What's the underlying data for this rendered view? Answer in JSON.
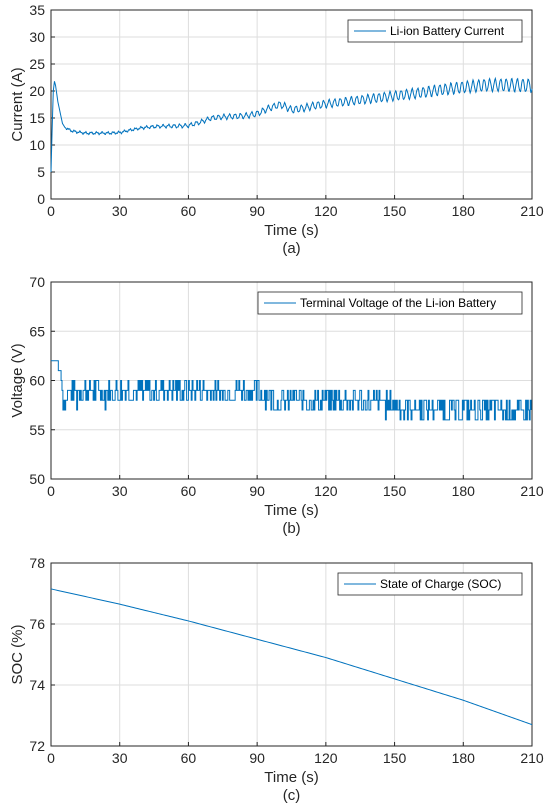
{
  "chart_data": [
    {
      "type": "line",
      "caption": "(a)",
      "xlabel": "Time (s)",
      "ylabel": "Current (A)",
      "xlim": [
        0,
        210
      ],
      "ylim": [
        0,
        35
      ],
      "xticks": [
        0,
        30,
        60,
        90,
        120,
        150,
        180,
        210
      ],
      "yticks": [
        0,
        5,
        10,
        15,
        20,
        25,
        30,
        35
      ],
      "grid": true,
      "legend_position": "top-right",
      "color": "#0072BD",
      "series": [
        {
          "name": "Li-ion Battery Current",
          "x": [
            0,
            0.5,
            1,
            1.5,
            2,
            3,
            4,
            5,
            6,
            8,
            10,
            15,
            20,
            25,
            30,
            35,
            40,
            45,
            50,
            55,
            60,
            65,
            70,
            75,
            80,
            85,
            90,
            95,
            100,
            102,
            105,
            110,
            115,
            120,
            130,
            140,
            150,
            160,
            170,
            180,
            190,
            200,
            210
          ],
          "y": [
            5,
            13,
            20,
            21.8,
            21,
            18,
            16,
            14,
            13.3,
            12.8,
            12.5,
            12.2,
            12.2,
            12.2,
            12.3,
            12.8,
            13.2,
            13.4,
            13.5,
            13.5,
            13.6,
            14.2,
            15,
            15.2,
            15.3,
            15.4,
            15.8,
            16.8,
            17.5,
            17.2,
            16.5,
            16.8,
            17.3,
            17.6,
            18.1,
            18.6,
            19.1,
            19.6,
            20.2,
            20.7,
            21.1,
            21.1,
            21
          ],
          "oscillation_amplitude": 1.2
        }
      ]
    },
    {
      "type": "line",
      "caption": "(b)",
      "xlabel": "Time (s)",
      "ylabel": "Voltage (V)",
      "xlim": [
        0,
        210
      ],
      "ylim": [
        50,
        70
      ],
      "xticks": [
        0,
        30,
        60,
        90,
        120,
        150,
        180,
        210
      ],
      "yticks": [
        50,
        55,
        60,
        65,
        70
      ],
      "grid": true,
      "legend_position": "top-right",
      "color": "#0072BD",
      "series": [
        {
          "name": "Terminal Voltage of the Li-ion Battery",
          "x": [
            0,
            2,
            4,
            5,
            10,
            30,
            60,
            90,
            100,
            130,
            150,
            180,
            210
          ],
          "y": [
            62,
            62,
            61,
            58,
            59,
            59,
            59,
            58.8,
            58,
            58,
            57.5,
            57,
            57
          ],
          "oscillation_amplitude": 1.2
        }
      ]
    },
    {
      "type": "line",
      "caption": "(c)",
      "xlabel": "Time (s)",
      "ylabel": "SOC (%)",
      "xlim": [
        0,
        210
      ],
      "ylim": [
        72,
        78
      ],
      "xticks": [
        0,
        30,
        60,
        90,
        120,
        150,
        180,
        210
      ],
      "yticks": [
        72,
        74,
        76,
        78
      ],
      "grid": true,
      "legend_position": "top-right",
      "color": "#0072BD",
      "series": [
        {
          "name": "State of Charge (SOC)",
          "x": [
            0,
            30,
            60,
            90,
            120,
            150,
            180,
            210
          ],
          "y": [
            77.15,
            76.65,
            76.1,
            75.5,
            74.9,
            74.2,
            73.5,
            72.7
          ]
        }
      ]
    }
  ]
}
